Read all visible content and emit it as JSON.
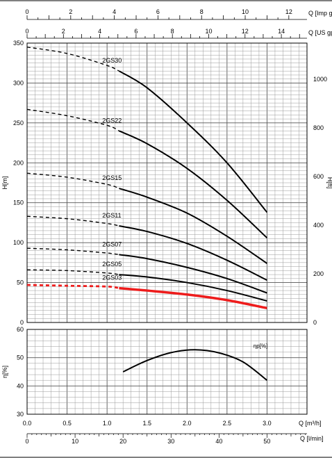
{
  "chart_data": [
    {
      "type": "line",
      "title": "",
      "xlabel": "Q [m³/h]",
      "ylabel": "H[m]",
      "ylabel_right": "H[ft]",
      "xlim": [
        0,
        3.0
      ],
      "ylim": [
        0,
        350
      ],
      "ylim_right": [
        0,
        1148
      ],
      "grid": true,
      "x_ticks": [
        "0.0",
        "0.5",
        "1.0",
        "1.5",
        "2.0",
        "2.5",
        "3.0"
      ],
      "y_ticks": [
        "0",
        "50",
        "100",
        "150",
        "200",
        "250",
        "300",
        "350"
      ],
      "y_right_ticks": [
        "0",
        "200",
        "400",
        "600",
        "800",
        "1000"
      ],
      "top_axes": [
        {
          "label": "Q [Imp gpm]",
          "ticks": [
            "0",
            "2",
            "4",
            "6",
            "8",
            "10",
            "12"
          ],
          "max": 11.0
        },
        {
          "label": "Q [US gpm]",
          "ticks": [
            "0",
            "2",
            "4",
            "6",
            "8",
            "10",
            "12",
            "14"
          ],
          "max": 13.21
        }
      ],
      "dashed_until_x": 1.15,
      "series": [
        {
          "name": "2GS30",
          "x": [
            0,
            0.5,
            1.0,
            1.15,
            1.5,
            2.0,
            2.5,
            3.0
          ],
          "values": [
            345,
            337,
            322,
            315,
            294,
            250,
            200,
            138
          ],
          "color": "#000000"
        },
        {
          "name": "2GS22",
          "x": [
            0,
            0.5,
            1.0,
            1.15,
            1.5,
            2.0,
            2.5,
            3.0
          ],
          "values": [
            267,
            259,
            247,
            240,
            224,
            193,
            153,
            106
          ],
          "color": "#000000"
        },
        {
          "name": "2GS15",
          "x": [
            0,
            0.5,
            1.0,
            1.15,
            1.5,
            2.0,
            2.5,
            3.0
          ],
          "values": [
            187,
            182,
            173,
            168,
            157,
            137,
            108,
            74
          ],
          "color": "#000000"
        },
        {
          "name": "2GS11",
          "x": [
            0,
            0.5,
            1.0,
            1.15,
            1.5,
            2.0,
            2.5,
            3.0
          ],
          "values": [
            133,
            130,
            124,
            121,
            114,
            99,
            78,
            53
          ],
          "color": "#000000"
        },
        {
          "name": "2GS07",
          "x": [
            0,
            0.5,
            1.0,
            1.15,
            1.5,
            2.0,
            2.5,
            3.0
          ],
          "values": [
            93,
            91,
            87,
            85,
            80,
            69,
            55,
            37
          ],
          "color": "#000000"
        },
        {
          "name": "2GS05",
          "x": [
            0,
            0.5,
            1.0,
            1.15,
            1.5,
            2.0,
            2.5,
            3.0
          ],
          "values": [
            66,
            65,
            62,
            60,
            57,
            50,
            40,
            27
          ],
          "color": "#000000"
        },
        {
          "name": "2GS03",
          "x": [
            0,
            0.5,
            1.0,
            1.15,
            1.5,
            2.0,
            2.5,
            3.0
          ],
          "values": [
            47,
            46,
            45,
            43,
            40,
            35,
            28,
            18
          ],
          "color": "#ee1c1c"
        }
      ]
    },
    {
      "type": "line",
      "title": "",
      "xlabel": "Q [m³/h]",
      "ylabel": "η[%]",
      "xlim": [
        0,
        3.0
      ],
      "ylim": [
        30,
        60
      ],
      "grid": true,
      "x_ticks": [
        "0.0",
        "0.5",
        "1.0",
        "1.5",
        "2.0",
        "2.5",
        "3.0"
      ],
      "y_ticks": [
        "30",
        "40",
        "50",
        "60"
      ],
      "bottom_axis": {
        "label": "Q [l/min]",
        "ticks": [
          "0",
          "10",
          "20",
          "30",
          "40",
          "50"
        ],
        "max": 50
      },
      "series": [
        {
          "name": "ηp[%]",
          "x": [
            1.2,
            1.5,
            1.8,
            2.1,
            2.4,
            2.7,
            3.0
          ],
          "values": [
            45,
            49,
            51.8,
            52.8,
            51.7,
            48.5,
            42
          ],
          "color": "#000000"
        }
      ]
    }
  ]
}
